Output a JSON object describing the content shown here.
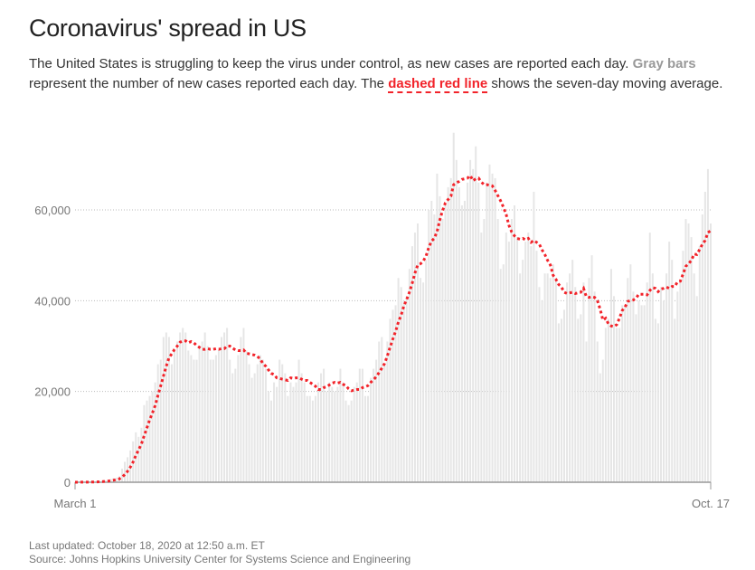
{
  "header": {
    "title": "Coronavirus' spread in US",
    "desc_1": "The United States is struggling to keep the virus under control, as new cases are reported each day. ",
    "desc_gray": "Gray bars",
    "desc_2": " represent the number of new cases reported each day. The ",
    "desc_red": "dashed red line",
    "desc_3": " shows the seven-day moving average."
  },
  "footer": {
    "updated": "Last updated: October 18, 2020 at 12:50 a.m. ET",
    "source": "Source: Johns Hopkins University Center for Systems Science and Engineering"
  },
  "chart_data": {
    "type": "bar",
    "title": "Coronavirus' spread in US",
    "x_start": "2020-03-01",
    "x_end": "2020-10-17",
    "x_tick_labels": [
      "March 1",
      "Oct. 17"
    ],
    "y_ticks": [
      0,
      20000,
      40000,
      60000
    ],
    "y_tick_labels": [
      "0",
      "20,000",
      "40,000",
      "60,000"
    ],
    "ylim": [
      0,
      77000
    ],
    "grid": true,
    "bar_color": "#e6e6e6",
    "line_color": "#f2232a",
    "series": [
      {
        "type": "bar",
        "values": [
          0,
          10,
          20,
          30,
          50,
          60,
          100,
          120,
          130,
          200,
          350,
          400,
          500,
          700,
          900,
          1000,
          1300,
          3000,
          4500,
          5500,
          7000,
          9000,
          11000,
          10000,
          12000,
          17000,
          18000,
          19000,
          20000,
          22000,
          26000,
          27000,
          32000,
          33000,
          32000,
          26000,
          29000,
          31000,
          33000,
          34000,
          33000,
          29000,
          28000,
          27000,
          27000,
          30000,
          31000,
          33000,
          30000,
          27000,
          27000,
          28000,
          29000,
          32000,
          33000,
          34000,
          27000,
          24000,
          25000,
          28000,
          32000,
          34000,
          29000,
          26000,
          23000,
          24000,
          26000,
          28000,
          27000,
          25000,
          20000,
          18000,
          22000,
          21000,
          27000,
          26000,
          24000,
          19000,
          22000,
          21000,
          22000,
          27000,
          24000,
          22000,
          19000,
          19000,
          18000,
          19000,
          22000,
          24000,
          25000,
          20000,
          22000,
          21000,
          20000,
          21000,
          25000,
          22000,
          18000,
          17000,
          18000,
          21000,
          22000,
          25000,
          25000,
          19000,
          19000,
          23000,
          25000,
          27000,
          31000,
          32000,
          26000,
          31000,
          36000,
          38000,
          39000,
          45000,
          43000,
          40000,
          41000,
          47000,
          52000,
          55000,
          57000,
          45000,
          44000,
          49000,
          60000,
          62000,
          59000,
          68000,
          63000,
          58000,
          61000,
          65000,
          67000,
          77000,
          71000,
          65000,
          61000,
          62000,
          66000,
          71000,
          69000,
          74000,
          66000,
          55000,
          58000,
          66000,
          70000,
          68000,
          67000,
          58000,
          47000,
          48000,
          55000,
          53000,
          58000,
          61000,
          54000,
          46000,
          49000,
          53000,
          55000,
          52000,
          64000,
          51000,
          43000,
          40000,
          46000,
          46000,
          45000,
          48000,
          45000,
          35000,
          36000,
          38000,
          44000,
          46000,
          49000,
          43000,
          36000,
          37000,
          44000,
          31000,
          45000,
          50000,
          42000,
          31000,
          24000,
          27000,
          34000,
          36000,
          47000,
          41000,
          34000,
          34000,
          39000,
          39000,
          45000,
          48000,
          42000,
          37000,
          40000,
          39000,
          39000,
          44000,
          55000,
          46000,
          36000,
          35000,
          43000,
          40000,
          46000,
          53000,
          49000,
          36000,
          42000,
          44000,
          51000,
          58000,
          57000,
          54000,
          46000,
          41000,
          52000,
          59000,
          64000,
          69000,
          57000
        ]
      },
      {
        "type": "line",
        "style": "dashed",
        "computed": "seven-day moving average"
      }
    ]
  }
}
